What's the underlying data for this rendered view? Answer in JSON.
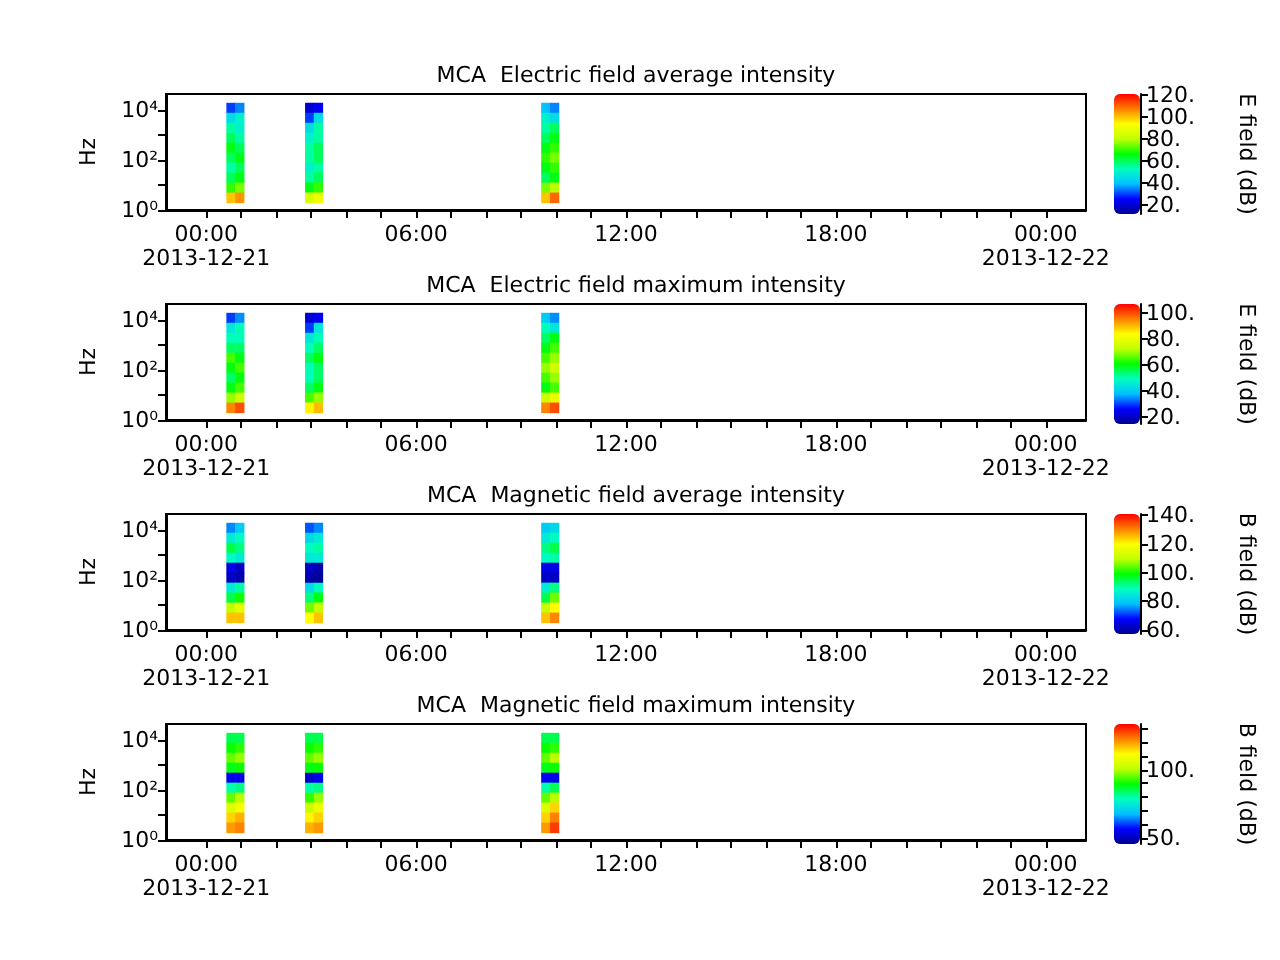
{
  "chart_data": [
    {
      "type": "heatmap",
      "title": "MCA  Electric field average intensity",
      "ylabel": "Hz",
      "clabel": "E field (dB)",
      "log": "y",
      "grid": false,
      "x": [
        0.7,
        0.95,
        1.2,
        1.45,
        1.7,
        1.95,
        2.2,
        2.45,
        2.7,
        2.95,
        3.2,
        3.45,
        3.7,
        3.95,
        4.2,
        4.45,
        4.7,
        4.95,
        5.2,
        5.45,
        5.7,
        5.95,
        6.2,
        6.45,
        6.7,
        6.95,
        7.2,
        7.45,
        7.7,
        7.95,
        8.2,
        8.45,
        8.7,
        8.95,
        9.2,
        9.45,
        9.7,
        9.95
      ],
      "xlim": [
        -1.15,
        25.15
      ],
      "xticks": [
        {
          "value": 0,
          "label": "00:00\n2013-12-21"
        },
        {
          "value": 1,
          "label": null
        },
        {
          "value": 2,
          "label": null
        },
        {
          "value": 3,
          "label": null
        },
        {
          "value": 4,
          "label": null
        },
        {
          "value": 5,
          "label": null
        },
        {
          "value": 6,
          "label": "06:00"
        },
        {
          "value": 7,
          "label": null
        },
        {
          "value": 8,
          "label": null
        },
        {
          "value": 9,
          "label": null
        },
        {
          "value": 10,
          "label": null
        },
        {
          "value": 11,
          "label": null
        },
        {
          "value": 12,
          "label": "12:00"
        },
        {
          "value": 13,
          "label": null
        },
        {
          "value": 14,
          "label": null
        },
        {
          "value": 15,
          "label": null
        },
        {
          "value": 16,
          "label": null
        },
        {
          "value": 17,
          "label": null
        },
        {
          "value": 18,
          "label": "18:00"
        },
        {
          "value": 19,
          "label": null
        },
        {
          "value": 20,
          "label": null
        },
        {
          "value": 21,
          "label": null
        },
        {
          "value": 22,
          "label": null
        },
        {
          "value": 23,
          "label": null
        },
        {
          "value": 24,
          "label": "00:00\n2013-12-22"
        }
      ],
      "ylim": [
        1,
        45000
      ],
      "yticks": [
        {
          "value": 1,
          "label": "10⁰"
        },
        {
          "value": 10,
          "label": null
        },
        {
          "value": 100,
          "label": "10²"
        },
        {
          "value": 1000,
          "label": null
        },
        {
          "value": 10000,
          "label": "10⁴"
        }
      ],
      "clim": [
        12,
        121
      ],
      "cticks": [
        {
          "value": 20,
          "label": "20."
        },
        {
          "value": 40,
          "label": "40."
        },
        {
          "value": 60,
          "label": "60."
        },
        {
          "value": 80,
          "label": "80."
        },
        {
          "value": 100,
          "label": "100."
        },
        {
          "value": 120,
          "label": "120."
        }
      ],
      "y": [
        12600,
        5010,
        2000,
        794,
        316,
        126,
        50.1,
        20,
        7.94,
        3.16
      ],
      "cells": [
        [
          30,
          35,
          null,
          null,
          null,
          null,
          null,
          null,
          null,
          20,
          25,
          null,
          null,
          null,
          null,
          null,
          null,
          null,
          null,
          null,
          null,
          null,
          null,
          null,
          null,
          null,
          null,
          null,
          null,
          null,
          null,
          null,
          null,
          null,
          null,
          null,
          40,
          35
        ],
        [
          45,
          50,
          null,
          null,
          null,
          null,
          null,
          null,
          null,
          30,
          45,
          null,
          null,
          null,
          null,
          null,
          null,
          null,
          null,
          null,
          null,
          null,
          null,
          null,
          null,
          null,
          null,
          null,
          null,
          null,
          null,
          null,
          null,
          null,
          null,
          null,
          50,
          45
        ],
        [
          55,
          50,
          null,
          null,
          null,
          null,
          null,
          null,
          null,
          45,
          55,
          null,
          null,
          null,
          null,
          null,
          null,
          null,
          null,
          null,
          null,
          null,
          null,
          null,
          null,
          null,
          null,
          null,
          null,
          null,
          null,
          null,
          null,
          null,
          null,
          null,
          55,
          60
        ],
        [
          60,
          55,
          null,
          null,
          null,
          null,
          null,
          null,
          null,
          50,
          55,
          null,
          null,
          null,
          null,
          null,
          null,
          null,
          null,
          null,
          null,
          null,
          null,
          null,
          null,
          null,
          null,
          null,
          null,
          null,
          null,
          null,
          null,
          null,
          null,
          null,
          60,
          65
        ],
        [
          65,
          60,
          null,
          null,
          null,
          null,
          null,
          null,
          null,
          55,
          60,
          null,
          null,
          null,
          null,
          null,
          null,
          null,
          null,
          null,
          null,
          null,
          null,
          null,
          null,
          null,
          null,
          null,
          null,
          null,
          null,
          null,
          null,
          null,
          null,
          null,
          65,
          70
        ],
        [
          60,
          65,
          null,
          null,
          null,
          null,
          null,
          null,
          null,
          55,
          60,
          null,
          null,
          null,
          null,
          null,
          null,
          null,
          null,
          null,
          null,
          null,
          null,
          null,
          null,
          null,
          null,
          null,
          null,
          null,
          null,
          null,
          null,
          null,
          null,
          null,
          70,
          75
        ],
        [
          55,
          60,
          null,
          null,
          null,
          null,
          null,
          null,
          null,
          50,
          55,
          null,
          null,
          null,
          null,
          null,
          null,
          null,
          null,
          null,
          null,
          null,
          null,
          null,
          null,
          null,
          null,
          null,
          null,
          null,
          null,
          null,
          null,
          null,
          null,
          null,
          65,
          70
        ],
        [
          60,
          65,
          null,
          null,
          null,
          null,
          null,
          null,
          null,
          55,
          60,
          null,
          null,
          null,
          null,
          null,
          null,
          null,
          null,
          null,
          null,
          null,
          null,
          null,
          null,
          null,
          null,
          null,
          null,
          null,
          null,
          null,
          null,
          null,
          null,
          null,
          60,
          65
        ],
        [
          70,
          75,
          null,
          null,
          null,
          null,
          null,
          null,
          null,
          65,
          70,
          null,
          null,
          null,
          null,
          null,
          null,
          null,
          null,
          null,
          null,
          null,
          null,
          null,
          null,
          null,
          null,
          null,
          null,
          null,
          null,
          null,
          null,
          null,
          null,
          null,
          75,
          80
        ],
        [
          100,
          105,
          null,
          null,
          null,
          null,
          null,
          null,
          null,
          85,
          90,
          null,
          null,
          null,
          null,
          null,
          null,
          null,
          null,
          null,
          null,
          null,
          null,
          null,
          null,
          null,
          null,
          null,
          null,
          null,
          null,
          null,
          null,
          null,
          null,
          null,
          100,
          110
        ]
      ]
    },
    {
      "type": "heatmap",
      "title": "MCA  Electric field maximum intensity",
      "ylabel": "Hz",
      "clabel": "E field (dB)",
      "log": "y",
      "grid": false,
      "x": [
        0.7,
        0.95,
        1.2,
        1.45,
        1.7,
        1.95,
        2.2,
        2.45,
        2.7,
        2.95,
        3.2,
        3.45,
        3.7,
        3.95,
        4.2,
        4.45,
        4.7,
        4.95,
        5.2,
        5.45,
        5.7,
        5.95,
        6.2,
        6.45,
        6.7,
        6.95,
        7.2,
        7.45,
        7.7,
        7.95,
        8.2,
        8.45,
        8.7,
        8.95,
        9.2,
        9.45,
        9.7,
        9.95
      ],
      "xlim": [
        -1.15,
        25.15
      ],
      "xticks": [
        {
          "value": 0,
          "label": "00:00\n2013-12-21"
        },
        {
          "value": 1,
          "label": null
        },
        {
          "value": 2,
          "label": null
        },
        {
          "value": 3,
          "label": null
        },
        {
          "value": 4,
          "label": null
        },
        {
          "value": 5,
          "label": null
        },
        {
          "value": 6,
          "label": "06:00"
        },
        {
          "value": 7,
          "label": null
        },
        {
          "value": 8,
          "label": null
        },
        {
          "value": 9,
          "label": null
        },
        {
          "value": 10,
          "label": null
        },
        {
          "value": 11,
          "label": null
        },
        {
          "value": 12,
          "label": "12:00"
        },
        {
          "value": 13,
          "label": null
        },
        {
          "value": 14,
          "label": null
        },
        {
          "value": 15,
          "label": null
        },
        {
          "value": 16,
          "label": null
        },
        {
          "value": 17,
          "label": null
        },
        {
          "value": 18,
          "label": "18:00"
        },
        {
          "value": 19,
          "label": null
        },
        {
          "value": 20,
          "label": null
        },
        {
          "value": 21,
          "label": null
        },
        {
          "value": 22,
          "label": null
        },
        {
          "value": 23,
          "label": null
        },
        {
          "value": 24,
          "label": "00:00\n2013-12-22"
        }
      ],
      "ylim": [
        1,
        45000
      ],
      "yticks": [
        {
          "value": 1,
          "label": "10⁰"
        },
        {
          "value": 10,
          "label": null
        },
        {
          "value": 100,
          "label": "10²"
        },
        {
          "value": 1000,
          "label": null
        },
        {
          "value": 10000,
          "label": "10⁴"
        }
      ],
      "clim": [
        15,
        107
      ],
      "cticks": [
        {
          "value": 20,
          "label": "20."
        },
        {
          "value": 40,
          "label": "40."
        },
        {
          "value": 60,
          "label": "60."
        },
        {
          "value": 80,
          "label": "80."
        },
        {
          "value": 100,
          "label": "100."
        }
      ],
      "y": [
        12600,
        5010,
        2000,
        794,
        316,
        126,
        50.1,
        20,
        7.94,
        3.16
      ],
      "cells": [
        [
          30,
          35,
          null,
          null,
          null,
          null,
          null,
          null,
          null,
          22,
          25,
          null,
          null,
          null,
          null,
          null,
          null,
          null,
          null,
          null,
          null,
          null,
          null,
          null,
          null,
          null,
          null,
          null,
          null,
          null,
          null,
          null,
          null,
          null,
          null,
          null,
          40,
          35
        ],
        [
          45,
          50,
          null,
          null,
          null,
          null,
          null,
          null,
          null,
          30,
          45,
          null,
          null,
          null,
          null,
          null,
          null,
          null,
          null,
          null,
          null,
          null,
          null,
          null,
          null,
          null,
          null,
          null,
          null,
          null,
          null,
          null,
          null,
          null,
          null,
          null,
          50,
          45
        ],
        [
          50,
          50,
          null,
          null,
          null,
          null,
          null,
          null,
          null,
          45,
          50,
          null,
          null,
          null,
          null,
          null,
          null,
          null,
          null,
          null,
          null,
          null,
          null,
          null,
          null,
          null,
          null,
          null,
          null,
          null,
          null,
          null,
          null,
          null,
          null,
          null,
          55,
          60
        ],
        [
          55,
          55,
          null,
          null,
          null,
          null,
          null,
          null,
          null,
          50,
          55,
          null,
          null,
          null,
          null,
          null,
          null,
          null,
          null,
          null,
          null,
          null,
          null,
          null,
          null,
          null,
          null,
          null,
          null,
          null,
          null,
          null,
          null,
          null,
          null,
          null,
          60,
          65
        ],
        [
          65,
          60,
          null,
          null,
          null,
          null,
          null,
          null,
          null,
          55,
          60,
          null,
          null,
          null,
          null,
          null,
          null,
          null,
          null,
          null,
          null,
          null,
          null,
          null,
          null,
          null,
          null,
          null,
          null,
          null,
          null,
          null,
          null,
          null,
          null,
          null,
          65,
          70
        ],
        [
          60,
          65,
          null,
          null,
          null,
          null,
          null,
          null,
          null,
          50,
          55,
          null,
          null,
          null,
          null,
          null,
          null,
          null,
          null,
          null,
          null,
          null,
          null,
          null,
          null,
          null,
          null,
          null,
          null,
          null,
          null,
          null,
          null,
          null,
          null,
          null,
          70,
          75
        ],
        [
          55,
          60,
          null,
          null,
          null,
          null,
          null,
          null,
          null,
          50,
          55,
          null,
          null,
          null,
          null,
          null,
          null,
          null,
          null,
          null,
          null,
          null,
          null,
          null,
          null,
          null,
          null,
          null,
          null,
          null,
          null,
          null,
          null,
          null,
          null,
          null,
          65,
          70
        ],
        [
          60,
          65,
          null,
          null,
          null,
          null,
          null,
          null,
          null,
          55,
          60,
          null,
          null,
          null,
          null,
          null,
          null,
          null,
          null,
          null,
          null,
          null,
          null,
          null,
          null,
          null,
          null,
          null,
          null,
          null,
          null,
          null,
          null,
          null,
          null,
          null,
          60,
          65
        ],
        [
          70,
          75,
          null,
          null,
          null,
          null,
          null,
          null,
          null,
          65,
          70,
          null,
          null,
          null,
          null,
          null,
          null,
          null,
          null,
          null,
          null,
          null,
          null,
          null,
          null,
          null,
          null,
          null,
          null,
          null,
          null,
          null,
          null,
          null,
          null,
          null,
          75,
          80
        ],
        [
          95,
          100,
          null,
          null,
          null,
          null,
          null,
          null,
          null,
          85,
          90,
          null,
          null,
          null,
          null,
          null,
          null,
          null,
          null,
          null,
          null,
          null,
          null,
          null,
          null,
          null,
          null,
          null,
          null,
          null,
          null,
          null,
          null,
          null,
          null,
          null,
          95,
          100
        ]
      ]
    },
    {
      "type": "heatmap",
      "title": "MCA  Magnetic field average intensity",
      "ylabel": "Hz",
      "clabel": "B field (dB)",
      "log": "y",
      "grid": false,
      "x": [
        0.7,
        0.95,
        1.2,
        1.45,
        1.7,
        1.95,
        2.2,
        2.45,
        2.7,
        2.95,
        3.2,
        3.45,
        3.7,
        3.95,
        4.2,
        4.45,
        4.7,
        4.95,
        5.2,
        5.45,
        5.7,
        5.95,
        6.2,
        6.45,
        6.7,
        6.95,
        7.2,
        7.45,
        7.7,
        7.95,
        8.2,
        8.45,
        8.7,
        8.95,
        9.2,
        9.45,
        9.7,
        9.95
      ],
      "xlim": [
        -1.15,
        25.15
      ],
      "xticks": [
        {
          "value": 0,
          "label": "00:00\n2013-12-21"
        },
        {
          "value": 1,
          "label": null
        },
        {
          "value": 2,
          "label": null
        },
        {
          "value": 3,
          "label": null
        },
        {
          "value": 4,
          "label": null
        },
        {
          "value": 5,
          "label": null
        },
        {
          "value": 6,
          "label": "06:00"
        },
        {
          "value": 7,
          "label": null
        },
        {
          "value": 8,
          "label": null
        },
        {
          "value": 9,
          "label": null
        },
        {
          "value": 10,
          "label": null
        },
        {
          "value": 11,
          "label": null
        },
        {
          "value": 12,
          "label": "12:00"
        },
        {
          "value": 13,
          "label": null
        },
        {
          "value": 14,
          "label": null
        },
        {
          "value": 15,
          "label": null
        },
        {
          "value": 16,
          "label": null
        },
        {
          "value": 17,
          "label": null
        },
        {
          "value": 18,
          "label": "18:00"
        },
        {
          "value": 19,
          "label": null
        },
        {
          "value": 20,
          "label": null
        },
        {
          "value": 21,
          "label": null
        },
        {
          "value": 22,
          "label": null
        },
        {
          "value": 23,
          "label": null
        },
        {
          "value": 24,
          "label": "00:00\n2013-12-22"
        }
      ],
      "ylim": [
        1,
        45000
      ],
      "yticks": [
        {
          "value": 1,
          "label": "10⁰"
        },
        {
          "value": 10,
          "label": null
        },
        {
          "value": 100,
          "label": "10²"
        },
        {
          "value": 1000,
          "label": null
        },
        {
          "value": 10000,
          "label": "10⁴"
        }
      ],
      "clim": [
        57,
        141
      ],
      "cticks": [
        {
          "value": 60,
          "label": "60."
        },
        {
          "value": 80,
          "label": "80."
        },
        {
          "value": 100,
          "label": "100."
        },
        {
          "value": 120,
          "label": "120."
        },
        {
          "value": 140,
          "label": "140."
        }
      ],
      "y": [
        12600,
        5010,
        2000,
        794,
        316,
        126,
        50.1,
        20,
        7.94,
        3.16
      ],
      "cells": [
        [
          75,
          80,
          null,
          null,
          null,
          null,
          null,
          null,
          null,
          72,
          75,
          null,
          null,
          null,
          null,
          null,
          null,
          null,
          null,
          null,
          null,
          null,
          null,
          null,
          null,
          null,
          null,
          null,
          null,
          null,
          null,
          null,
          null,
          null,
          null,
          null,
          80,
          82
        ],
        [
          85,
          88,
          null,
          null,
          null,
          null,
          null,
          null,
          null,
          82,
          85,
          null,
          null,
          null,
          null,
          null,
          null,
          null,
          null,
          null,
          null,
          null,
          null,
          null,
          null,
          null,
          null,
          null,
          null,
          null,
          null,
          null,
          null,
          null,
          null,
          null,
          85,
          88
        ],
        [
          95,
          92,
          null,
          null,
          null,
          null,
          null,
          null,
          null,
          88,
          90,
          null,
          null,
          null,
          null,
          null,
          null,
          null,
          null,
          null,
          null,
          null,
          null,
          null,
          null,
          null,
          null,
          null,
          null,
          null,
          null,
          null,
          null,
          null,
          null,
          null,
          92,
          95
        ],
        [
          88,
          85,
          null,
          null,
          null,
          null,
          null,
          null,
          null,
          85,
          85,
          null,
          null,
          null,
          null,
          null,
          null,
          null,
          null,
          null,
          null,
          null,
          null,
          null,
          null,
          null,
          null,
          null,
          null,
          null,
          null,
          null,
          null,
          null,
          null,
          null,
          88,
          90
        ],
        [
          65,
          62,
          null,
          null,
          null,
          null,
          null,
          null,
          null,
          62,
          60,
          null,
          null,
          null,
          null,
          null,
          null,
          null,
          null,
          null,
          null,
          null,
          null,
          null,
          null,
          null,
          null,
          null,
          null,
          null,
          null,
          null,
          null,
          null,
          null,
          null,
          65,
          65
        ],
        [
          62,
          60,
          null,
          null,
          null,
          null,
          null,
          null,
          null,
          60,
          58,
          null,
          null,
          null,
          null,
          null,
          null,
          null,
          null,
          null,
          null,
          null,
          null,
          null,
          null,
          null,
          null,
          null,
          null,
          null,
          null,
          null,
          null,
          null,
          null,
          null,
          62,
          62
        ],
        [
          85,
          90,
          null,
          null,
          null,
          null,
          null,
          null,
          null,
          82,
          88,
          null,
          null,
          null,
          null,
          null,
          null,
          null,
          null,
          null,
          null,
          null,
          null,
          null,
          null,
          null,
          null,
          null,
          null,
          null,
          null,
          null,
          null,
          null,
          null,
          null,
          85,
          92
        ],
        [
          95,
          100,
          null,
          null,
          null,
          null,
          null,
          null,
          null,
          92,
          98,
          null,
          null,
          null,
          null,
          null,
          null,
          null,
          null,
          null,
          null,
          null,
          null,
          null,
          null,
          null,
          null,
          null,
          null,
          null,
          null,
          null,
          null,
          null,
          null,
          null,
          95,
          105
        ],
        [
          110,
          115,
          null,
          null,
          null,
          null,
          null,
          null,
          null,
          105,
          110,
          null,
          null,
          null,
          null,
          null,
          null,
          null,
          null,
          null,
          null,
          null,
          null,
          null,
          null,
          null,
          null,
          null,
          null,
          null,
          null,
          null,
          null,
          null,
          null,
          null,
          110,
          120
        ],
        [
          125,
          125,
          null,
          null,
          null,
          null,
          null,
          null,
          null,
          120,
          125,
          null,
          null,
          null,
          null,
          null,
          null,
          null,
          null,
          null,
          null,
          null,
          null,
          null,
          null,
          null,
          null,
          null,
          null,
          null,
          null,
          null,
          null,
          null,
          null,
          null,
          125,
          130
        ]
      ]
    },
    {
      "type": "heatmap",
      "title": "MCA  Magnetic field maximum intensity",
      "ylabel": "Hz",
      "clabel": "B field (dB)",
      "log": "y",
      "grid": false,
      "x": [
        0.7,
        0.95,
        1.2,
        1.45,
        1.7,
        1.95,
        2.2,
        2.45,
        2.7,
        2.95,
        3.2,
        3.45,
        3.7,
        3.95,
        4.2,
        4.45,
        4.7,
        4.95,
        5.2,
        5.45,
        5.7,
        5.95,
        6.2,
        6.45,
        6.7,
        6.95,
        7.2,
        7.45,
        7.7,
        7.95,
        8.2,
        8.45,
        8.7,
        8.95,
        9.2,
        9.45,
        9.7,
        9.95
      ],
      "xlim": [
        -1.15,
        25.15
      ],
      "xticks": [
        {
          "value": 0,
          "label": "00:00\n2013-12-21"
        },
        {
          "value": 1,
          "label": null
        },
        {
          "value": 2,
          "label": null
        },
        {
          "value": 3,
          "label": null
        },
        {
          "value": 4,
          "label": null
        },
        {
          "value": 5,
          "label": null
        },
        {
          "value": 6,
          "label": "06:00"
        },
        {
          "value": 7,
          "label": null
        },
        {
          "value": 8,
          "label": null
        },
        {
          "value": 9,
          "label": null
        },
        {
          "value": 10,
          "label": null
        },
        {
          "value": 11,
          "label": null
        },
        {
          "value": 12,
          "label": "12:00"
        },
        {
          "value": 13,
          "label": null
        },
        {
          "value": 14,
          "label": null
        },
        {
          "value": 15,
          "label": null
        },
        {
          "value": 16,
          "label": null
        },
        {
          "value": 17,
          "label": null
        },
        {
          "value": 18,
          "label": "18:00"
        },
        {
          "value": 19,
          "label": null
        },
        {
          "value": 20,
          "label": null
        },
        {
          "value": 21,
          "label": null
        },
        {
          "value": 22,
          "label": null
        },
        {
          "value": 23,
          "label": null
        },
        {
          "value": 24,
          "label": "00:00\n2013-12-22"
        }
      ],
      "ylim": [
        1,
        45000
      ],
      "yticks": [
        {
          "value": 1,
          "label": "10⁰"
        },
        {
          "value": 10,
          "label": null
        },
        {
          "value": 100,
          "label": "10²"
        },
        {
          "value": 1000,
          "label": null
        },
        {
          "value": 10000,
          "label": "10⁴"
        }
      ],
      "clim": [
        46,
        133
      ],
      "cticks": [
        {
          "value": 50,
          "label": "50."
        },
        {
          "value": 60,
          "label": null
        },
        {
          "value": 70,
          "label": null
        },
        {
          "value": 80,
          "label": null
        },
        {
          "value": 90,
          "label": null
        },
        {
          "value": 100,
          "label": "100."
        },
        {
          "value": 110,
          "label": null
        },
        {
          "value": 120,
          "label": null
        },
        {
          "value": 130,
          "label": null
        }
      ],
      "y": [
        12600,
        5010,
        2000,
        794,
        316,
        126,
        50.1,
        20,
        7.94,
        3.16
      ],
      "cells": [
        [
          85,
          85,
          null,
          null,
          null,
          null,
          null,
          null,
          null,
          85,
          85,
          null,
          null,
          null,
          null,
          null,
          null,
          null,
          null,
          null,
          null,
          null,
          null,
          null,
          null,
          null,
          null,
          null,
          null,
          null,
          null,
          null,
          null,
          null,
          null,
          null,
          85,
          85
        ],
        [
          90,
          92,
          null,
          null,
          null,
          null,
          null,
          null,
          null,
          90,
          92,
          null,
          null,
          null,
          null,
          null,
          null,
          null,
          null,
          null,
          null,
          null,
          null,
          null,
          null,
          null,
          null,
          null,
          null,
          null,
          null,
          null,
          null,
          null,
          null,
          null,
          90,
          92
        ],
        [
          95,
          98,
          null,
          null,
          null,
          null,
          null,
          null,
          null,
          95,
          98,
          null,
          null,
          null,
          null,
          null,
          null,
          null,
          null,
          null,
          null,
          null,
          null,
          null,
          null,
          null,
          null,
          null,
          null,
          null,
          null,
          null,
          null,
          null,
          null,
          null,
          95,
          100
        ],
        [
          88,
          90,
          null,
          null,
          null,
          null,
          null,
          null,
          null,
          88,
          90,
          null,
          null,
          null,
          null,
          null,
          null,
          null,
          null,
          null,
          null,
          null,
          null,
          null,
          null,
          null,
          null,
          null,
          null,
          null,
          null,
          null,
          null,
          null,
          null,
          null,
          88,
          90
        ],
        [
          55,
          55,
          null,
          null,
          null,
          null,
          null,
          null,
          null,
          52,
          55,
          null,
          null,
          null,
          null,
          null,
          null,
          null,
          null,
          null,
          null,
          null,
          null,
          null,
          null,
          null,
          null,
          null,
          null,
          null,
          null,
          null,
          null,
          null,
          null,
          null,
          55,
          55
        ],
        [
          80,
          82,
          null,
          null,
          null,
          null,
          null,
          null,
          null,
          80,
          82,
          null,
          null,
          null,
          null,
          null,
          null,
          null,
          null,
          null,
          null,
          null,
          null,
          null,
          null,
          null,
          null,
          null,
          null,
          null,
          null,
          null,
          null,
          null,
          null,
          null,
          80,
          85
        ],
        [
          95,
          100,
          null,
          null,
          null,
          null,
          null,
          null,
          null,
          92,
          98,
          null,
          null,
          null,
          null,
          null,
          null,
          null,
          null,
          null,
          null,
          null,
          null,
          null,
          null,
          null,
          null,
          null,
          null,
          null,
          null,
          null,
          null,
          null,
          null,
          null,
          95,
          100
        ],
        [
          105,
          110,
          null,
          null,
          null,
          null,
          null,
          null,
          null,
          102,
          108,
          null,
          null,
          null,
          null,
          null,
          null,
          null,
          null,
          null,
          null,
          null,
          null,
          null,
          null,
          null,
          null,
          null,
          null,
          null,
          null,
          null,
          null,
          null,
          null,
          null,
          105,
          115
        ],
        [
          115,
          118,
          null,
          null,
          null,
          null,
          null,
          null,
          null,
          112,
          115,
          null,
          null,
          null,
          null,
          null,
          null,
          null,
          null,
          null,
          null,
          null,
          null,
          null,
          null,
          null,
          null,
          null,
          null,
          null,
          null,
          null,
          null,
          null,
          null,
          null,
          115,
          122
        ],
        [
          120,
          122,
          null,
          null,
          null,
          null,
          null,
          null,
          null,
          118,
          120,
          null,
          null,
          null,
          null,
          null,
          null,
          null,
          null,
          null,
          null,
          null,
          null,
          null,
          null,
          null,
          null,
          null,
          null,
          null,
          null,
          null,
          null,
          null,
          null,
          null,
          120,
          128
        ]
      ]
    }
  ]
}
